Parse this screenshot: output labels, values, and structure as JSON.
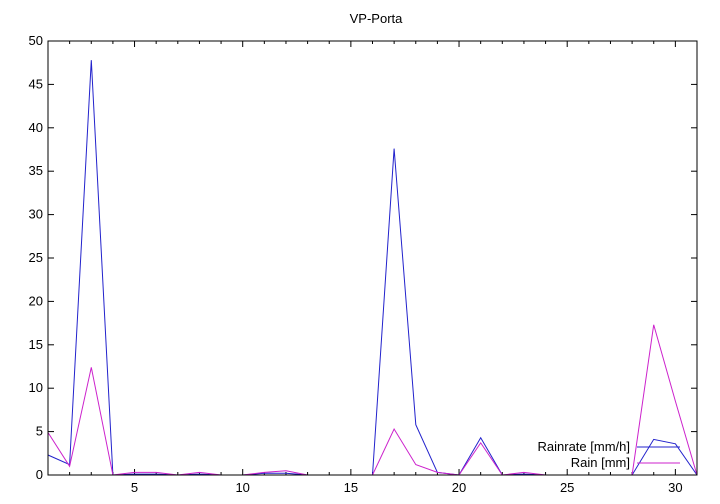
{
  "chart_data": {
    "type": "line",
    "title": "VP-Porta",
    "xlabel": "",
    "ylabel": "",
    "xlim": [
      1,
      31
    ],
    "ylim": [
      0,
      50
    ],
    "xticks": [
      5,
      10,
      15,
      20,
      25,
      30
    ],
    "yticks": [
      0,
      5,
      10,
      15,
      20,
      25,
      30,
      35,
      40,
      45,
      50
    ],
    "grid": false,
    "legend_position": "bottom-right",
    "x": [
      1,
      2,
      3,
      4,
      5,
      6,
      7,
      8,
      9,
      10,
      11,
      12,
      13,
      14,
      15,
      16,
      17,
      18,
      19,
      20,
      21,
      22,
      23,
      24,
      25,
      26,
      27,
      28,
      29,
      30,
      31
    ],
    "series": [
      {
        "name": "Rainrate [mm/h]",
        "color": "#2222cc",
        "values": [
          2.3,
          1.2,
          47.8,
          0,
          0.1,
          0.1,
          0,
          0.1,
          0,
          0,
          0.2,
          0.2,
          0,
          0,
          0,
          0,
          37.6,
          5.8,
          0.3,
          0,
          4.3,
          0,
          0.1,
          0,
          0,
          0,
          0,
          0,
          4.1,
          3.6,
          0
        ]
      },
      {
        "name": "Rain [mm]",
        "color": "#cc22cc",
        "values": [
          4.9,
          1.0,
          12.4,
          0,
          0.3,
          0.3,
          0,
          0.3,
          0,
          0,
          0.3,
          0.5,
          0,
          0,
          0,
          0,
          5.3,
          1.2,
          0.3,
          0,
          3.7,
          0,
          0.3,
          0,
          0,
          0,
          0,
          0,
          17.3,
          8.5,
          0
        ]
      }
    ]
  }
}
